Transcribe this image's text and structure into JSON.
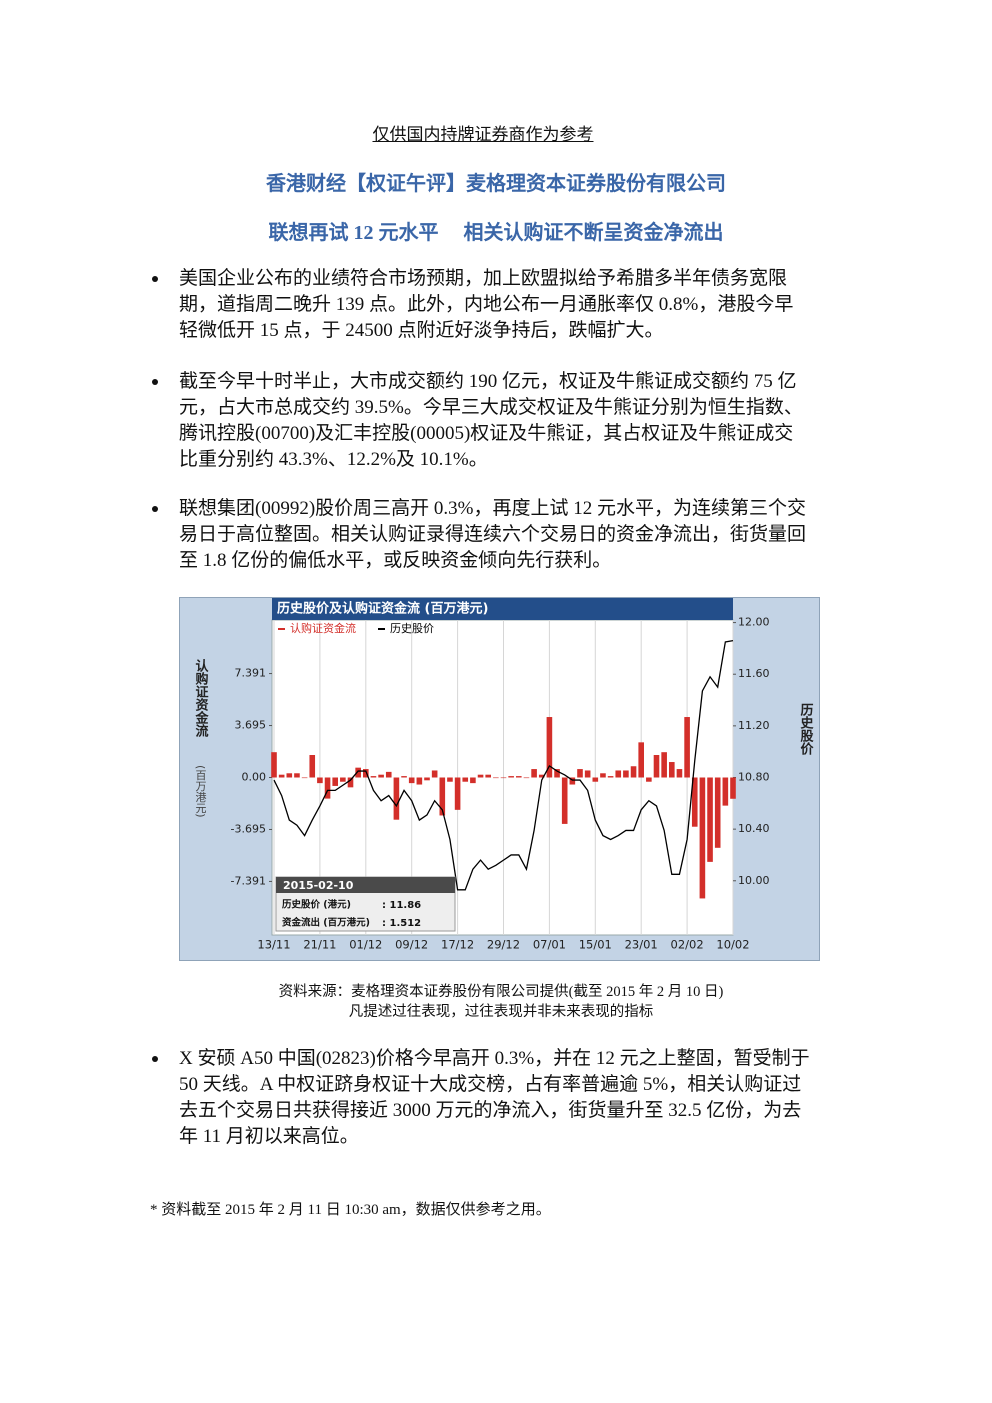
{
  "header": {
    "notice": "仅供国内持牌证券商作为参考",
    "title": "香港财经【权证午评】麦格理资本证券股份有限公司",
    "subtitle": "联想再试 12 元水平　 相关认购证不断呈资金净流出"
  },
  "bullets_before": [
    [
      "美国企业公布的业绩符合市场预期，加上欧盟拟给予希腊多半年债务宽限",
      "期，道指周二晚升 139 点。此外，内地公布一月通胀率仅 0.8%，港股今早",
      "轻微低开 15 点，于 24500 点附近好淡争持后，跌幅扩大。"
    ],
    [
      "截至今早十时半止，大市成交额约 190 亿元，权证及牛熊证成交额约 75 亿",
      "元，占大市总成交约 39.5%。今早三大成交权证及牛熊证分别为恒生指数、",
      "腾讯控股(00700)及汇丰控股(00005)权证及牛熊证，其占权证及牛熊证成交",
      "比重分别约 43.3%、12.2%及 10.1%。"
    ],
    [
      "联想集团(00992)股价周三高开 0.3%，再度上试 12 元水平，为连续第三个交",
      "易日于高位整固。相关认购证录得连续六个交易日的资金净流出，街货量回",
      "至 1.8 亿份的偏低水平，或反映资金倾向先行获利。"
    ]
  ],
  "chart_data": {
    "type": "bar",
    "title": "历史股价及认购证资金流 (百万港元)",
    "y_label": "认购证资金流",
    "y_label_unit": "(百万港元)",
    "y2_label": "历史股价",
    "categories": [
      "13/11",
      null,
      null,
      null,
      null,
      null,
      "21/11",
      null,
      null,
      null,
      null,
      null,
      "01/12",
      null,
      null,
      null,
      null,
      null,
      "09/12",
      null,
      null,
      null,
      null,
      null,
      "17/12",
      null,
      null,
      null,
      null,
      null,
      "29/12",
      null,
      null,
      null,
      null,
      null,
      "07/01",
      null,
      null,
      null,
      null,
      null,
      "15/01",
      null,
      null,
      null,
      null,
      null,
      "23/01",
      null,
      null,
      null,
      null,
      null,
      "02/02",
      null,
      null,
      null,
      null,
      null,
      "10/02"
    ],
    "series": [
      {
        "name": "认购证资金流",
        "color": "#d32f2a",
        "values": [
          1.8,
          0.2,
          0.3,
          0.3,
          0.0,
          1.6,
          -0.4,
          -1.5,
          -0.6,
          -0.3,
          -0.7,
          0.7,
          0.6,
          0.1,
          0.2,
          0.4,
          -3.0,
          0.1,
          -0.4,
          -0.5,
          -0.2,
          0.5,
          -2.7,
          -0.3,
          -2.3,
          -0.3,
          -0.4,
          0.2,
          0.2,
          0.0,
          0.0,
          0.1,
          0.1,
          0.0,
          0.6,
          0.2,
          4.3,
          0.6,
          -3.3,
          -0.5,
          0.6,
          0.5,
          -0.3,
          0.3,
          0.1,
          0.5,
          0.5,
          0.8,
          2.5,
          -0.3,
          1.6,
          1.8,
          1.1,
          0.6,
          4.3,
          -3.5,
          -8.6,
          -6.0,
          -5.0,
          -2.0,
          -1.512
        ]
      },
      {
        "name": "历史股价",
        "color": "#000000",
        "type": "line",
        "axis": "y2",
        "values": [
          10.78,
          10.66,
          10.47,
          10.43,
          10.35,
          10.47,
          10.58,
          10.7,
          10.7,
          10.74,
          10.78,
          10.85,
          10.85,
          10.7,
          10.62,
          10.66,
          10.58,
          10.7,
          10.62,
          10.47,
          10.51,
          10.62,
          10.55,
          10.32,
          9.93,
          9.93,
          10.09,
          10.16,
          10.09,
          10.12,
          10.16,
          10.2,
          10.2,
          10.09,
          10.39,
          10.78,
          10.89,
          10.85,
          10.82,
          10.78,
          10.78,
          10.7,
          10.47,
          10.35,
          10.32,
          10.35,
          10.39,
          10.39,
          10.55,
          10.62,
          10.58,
          10.39,
          10.05,
          10.05,
          10.32,
          10.93,
          11.47,
          11.58,
          11.5,
          11.85,
          11.86
        ]
      }
    ],
    "ylim": [
      -11.2,
      11.2
    ],
    "yticks": [
      -7.391,
      -3.695,
      {
        "value": 0,
        "label": "0.00"
      },
      3.695,
      7.391
    ],
    "y2lim": [
      9.58,
      12.02
    ],
    "y2ticks": [
      {
        "value": 10,
        "label": "10.00"
      },
      {
        "value": 10.4,
        "label": "10.40"
      },
      {
        "value": 10.8,
        "label": "10.80"
      },
      {
        "value": 11.2,
        "label": "11.20"
      },
      {
        "value": 11.6,
        "label": "11.60"
      },
      {
        "value": 12,
        "label": "12.00"
      }
    ],
    "grid": true,
    "tooltip": {
      "date": "2015-02-10",
      "rows": [
        {
          "label": "历史股价 (港元)",
          "text": ": 11.86"
        },
        {
          "label": "资金流出 (百万港元)",
          "text": ": 1.512"
        }
      ]
    }
  },
  "caption": [
    "资料来源：麦格理资本证券股份有限公司提供(截至 2015 年 2 月 10 日)",
    "凡提述过往表现，过往表现并非未来表现的指标"
  ],
  "bullets_after": [
    [
      "X 安硕 A50 中国(02823)价格今早高开 0.3%，并在 12 元之上整固，暂受制于",
      "50 天线。A 中权证跻身权证十大成交榜，占有率普遍逾 5%，相关认购证过",
      "去五个交易日共获得接近 3000 万元的净流入，街货量升至 32.5 亿份，为去",
      "年 11 月初以来高位。"
    ]
  ],
  "footnote": "*  资料截至 2015 年 2 月 11 日 10:30 am，数据仅供参考之用。"
}
